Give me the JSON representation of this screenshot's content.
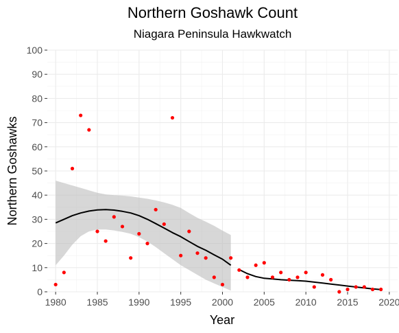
{
  "chart_data": {
    "type": "scatter",
    "title": "Northern Goshawk Count",
    "subtitle": "Niagara Peninsula Hawkwatch",
    "xlabel": "Year",
    "ylabel": "Northern Goshawks",
    "xlim": [
      1979,
      2021
    ],
    "ylim": [
      0,
      100
    ],
    "xticks": [
      1980,
      1985,
      1990,
      1995,
      2000,
      2005,
      2010,
      2015,
      2020
    ],
    "yticks": [
      0,
      10,
      20,
      30,
      40,
      50,
      60,
      70,
      80,
      90,
      100
    ],
    "grid": true,
    "point_color": "#ff0000",
    "smooth_color": "#000000",
    "ribbon_color": "#bebebe",
    "points": [
      {
        "x": 1980,
        "y": 3
      },
      {
        "x": 1981,
        "y": 8
      },
      {
        "x": 1982,
        "y": 51
      },
      {
        "x": 1983,
        "y": 73
      },
      {
        "x": 1984,
        "y": 67
      },
      {
        "x": 1985,
        "y": 25
      },
      {
        "x": 1986,
        "y": 21
      },
      {
        "x": 1987,
        "y": 31
      },
      {
        "x": 1988,
        "y": 27
      },
      {
        "x": 1989,
        "y": 14
      },
      {
        "x": 1990,
        "y": 24
      },
      {
        "x": 1991,
        "y": 20
      },
      {
        "x": 1992,
        "y": 34
      },
      {
        "x": 1993,
        "y": 28
      },
      {
        "x": 1994,
        "y": 72
      },
      {
        "x": 1995,
        "y": 15
      },
      {
        "x": 1996,
        "y": 25
      },
      {
        "x": 1997,
        "y": 16
      },
      {
        "x": 1998,
        "y": 14
      },
      {
        "x": 1999,
        "y": 6
      },
      {
        "x": 2000,
        "y": 3
      },
      {
        "x": 2001,
        "y": 14
      },
      {
        "x": 2002,
        "y": 9
      },
      {
        "x": 2003,
        "y": 6
      },
      {
        "x": 2004,
        "y": 11
      },
      {
        "x": 2005,
        "y": 12
      },
      {
        "x": 2006,
        "y": 6
      },
      {
        "x": 2007,
        "y": 8
      },
      {
        "x": 2008,
        "y": 5
      },
      {
        "x": 2009,
        "y": 6
      },
      {
        "x": 2010,
        "y": 8
      },
      {
        "x": 2011,
        "y": 2
      },
      {
        "x": 2012,
        "y": 7
      },
      {
        "x": 2013,
        "y": 5
      },
      {
        "x": 2014,
        "y": 0
      },
      {
        "x": 2015,
        "y": 1
      },
      {
        "x": 2016,
        "y": 2
      },
      {
        "x": 2017,
        "y": 2
      },
      {
        "x": 2018,
        "y": 1
      },
      {
        "x": 2019,
        "y": 1
      }
    ],
    "smooth_segments": [
      {
        "x": [
          1980,
          1981,
          1982,
          1983,
          1984,
          1985,
          1986,
          1987,
          1988,
          1989,
          1990,
          1991,
          1992,
          1993,
          1994,
          1995,
          1996,
          1997,
          1998,
          1999,
          2000,
          2001
        ],
        "y": [
          28.5,
          30,
          31.5,
          32.6,
          33.4,
          33.9,
          34,
          33.8,
          33.3,
          32.6,
          31.5,
          30,
          28.2,
          26.4,
          24.5,
          22.8,
          20.8,
          18.8,
          17.2,
          15.3,
          13.5,
          11
        ],
        "ymin": [
          11,
          15,
          19.5,
          23,
          25,
          25.8,
          25.8,
          25.4,
          24.8,
          24,
          22.6,
          20.8,
          18.5,
          16,
          13.5,
          11,
          9,
          7,
          5,
          3.5,
          2,
          0.5
        ],
        "ymax": [
          46,
          45,
          44,
          43,
          42,
          41,
          40.3,
          40,
          39.8,
          39.5,
          39,
          38.5,
          37.8,
          37,
          36,
          34.7,
          32.6,
          30.6,
          29,
          27.3,
          25.3,
          23.5
        ]
      },
      {
        "x": [
          2002,
          2003,
          2004,
          2005,
          2006,
          2007,
          2008,
          2009,
          2010,
          2011,
          2012,
          2013,
          2014,
          2015,
          2016,
          2017,
          2018,
          2019
        ],
        "y": [
          9.2,
          7.5,
          6.3,
          5.6,
          5.3,
          5,
          4.8,
          4.6,
          4.4,
          4,
          3.6,
          3.2,
          2.8,
          2.4,
          2,
          1.6,
          1.2,
          0.9
        ]
      }
    ]
  }
}
